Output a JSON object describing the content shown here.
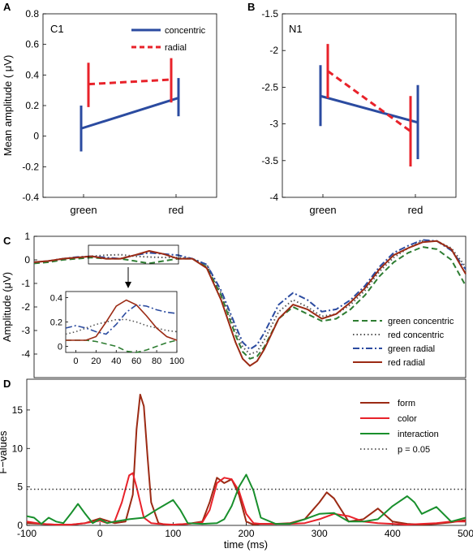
{
  "panels": {
    "A": {
      "panel_label": "A",
      "title": "C1",
      "ylabel": "Mean amplitude ( μV)",
      "yticks": [
        "-0.4",
        "-0.2",
        "0",
        "0.2",
        "0.4",
        "0.6",
        "0.8"
      ],
      "categories": [
        "green",
        "red"
      ]
    },
    "B": {
      "panel_label": "B",
      "title": "N1",
      "yticks": [
        "-4",
        "-3.5",
        "-3",
        "-2.5",
        "-2",
        "-1.5"
      ],
      "categories": [
        "green",
        "red"
      ]
    },
    "C": {
      "panel_label": "C",
      "ylabel": "Amplitude (μV)",
      "yticks": [
        "1",
        "0",
        "-1",
        "-2",
        "-3",
        "-4"
      ],
      "inset_yticks": [
        "0.4",
        "0.2",
        "0"
      ],
      "inset_xticks": [
        "0",
        "20",
        "40",
        "60",
        "80",
        "100"
      ]
    },
    "D": {
      "panel_label": "D",
      "ylabel": "F−values",
      "xlabel": "time (ms)",
      "yticks": [
        "15",
        "10",
        "5",
        "0"
      ],
      "xticks": [
        "-100",
        "0",
        "100",
        "200",
        "300",
        "400",
        "500"
      ]
    }
  },
  "chart_data": [
    {
      "id": "A",
      "type": "line",
      "title": "C1",
      "ylabel": "Mean amplitude ( μV)",
      "categories": [
        "green",
        "red"
      ],
      "ylim": [
        -0.4,
        0.8
      ],
      "legend_position": "top-right",
      "series": [
        {
          "name": "concentric",
          "color": "#2b4ba0",
          "style": "solid",
          "values": [
            0.05,
            0.25
          ],
          "error_low": [
            -0.1,
            0.13
          ],
          "error_high": [
            0.2,
            0.38
          ]
        },
        {
          "name": "radial",
          "color": "#e8222a",
          "style": "dashed",
          "values": [
            0.34,
            0.37
          ],
          "error_low": [
            0.19,
            0.22
          ],
          "error_high": [
            0.48,
            0.51
          ]
        }
      ]
    },
    {
      "id": "B",
      "type": "line",
      "title": "N1",
      "categories": [
        "green",
        "red"
      ],
      "ylim": [
        -4,
        -1.5
      ],
      "series": [
        {
          "name": "concentric",
          "color": "#2b4ba0",
          "style": "solid",
          "values": [
            -2.62,
            -2.98
          ],
          "error_low": [
            -3.03,
            -3.48
          ],
          "error_high": [
            -2.2,
            -2.47
          ]
        },
        {
          "name": "radial",
          "color": "#e8222a",
          "style": "dashed",
          "values": [
            -2.28,
            -3.1
          ],
          "error_low": [
            -2.65,
            -3.58
          ],
          "error_high": [
            -1.91,
            -2.62
          ]
        }
      ]
    },
    {
      "id": "C",
      "type": "line",
      "ylabel": "Amplitude (μV)",
      "xlim": [
        -100,
        500
      ],
      "ylim": [
        -5,
        1
      ],
      "legend_position": "bottom-right",
      "series": [
        {
          "name": "green concentric",
          "color": "#2e7d32",
          "style": "dashed",
          "x": [
            -100,
            -80,
            -60,
            -40,
            -20,
            0,
            20,
            40,
            60,
            80,
            100,
            120,
            140,
            160,
            180,
            190,
            200,
            210,
            220,
            240,
            260,
            280,
            300,
            320,
            340,
            360,
            380,
            400,
            420,
            440,
            460,
            480,
            500
          ],
          "y": [
            -0.15,
            -0.1,
            0,
            0.05,
            0.1,
            0.05,
            0.05,
            -0.05,
            -0.15,
            -0.05,
            0.05,
            0.05,
            -0.3,
            -1.5,
            -3.2,
            -3.9,
            -4.2,
            -4.1,
            -3.7,
            -2.5,
            -2.0,
            -2.3,
            -2.6,
            -2.5,
            -2.1,
            -1.5,
            -0.7,
            -0.1,
            0.3,
            0.55,
            0.45,
            0.0,
            -1.1
          ]
        },
        {
          "name": "red concentric",
          "color": "#555555",
          "style": "dotted",
          "x": [
            -100,
            -80,
            -60,
            -40,
            -20,
            0,
            20,
            40,
            60,
            80,
            100,
            120,
            140,
            160,
            180,
            190,
            200,
            210,
            220,
            240,
            260,
            280,
            300,
            320,
            340,
            360,
            380,
            400,
            420,
            440,
            460,
            480,
            500
          ],
          "y": [
            -0.1,
            -0.05,
            0.05,
            0.1,
            0.15,
            0.2,
            0.22,
            0.15,
            0.12,
            0.1,
            0.1,
            0.05,
            -0.2,
            -1.4,
            -3.0,
            -3.7,
            -4.0,
            -3.9,
            -3.4,
            -2.2,
            -1.7,
            -2.0,
            -2.4,
            -2.3,
            -1.9,
            -1.3,
            -0.5,
            0.1,
            0.5,
            0.8,
            0.8,
            0.5,
            -0.3
          ]
        },
        {
          "name": "green radial",
          "color": "#2b4ba0",
          "style": "dashdot",
          "x": [
            -100,
            -80,
            -60,
            -40,
            -20,
            0,
            20,
            40,
            60,
            80,
            100,
            120,
            140,
            160,
            180,
            190,
            200,
            210,
            220,
            240,
            260,
            280,
            300,
            320,
            340,
            360,
            380,
            400,
            420,
            440,
            460,
            480,
            500
          ],
          "y": [
            -0.1,
            -0.05,
            0.05,
            0.12,
            0.15,
            0.1,
            0.05,
            0.2,
            0.3,
            0.25,
            0.2,
            0.05,
            -0.2,
            -1.3,
            -2.8,
            -3.5,
            -3.8,
            -3.6,
            -3.1,
            -1.9,
            -1.4,
            -1.7,
            -2.2,
            -2.1,
            -1.7,
            -1.1,
            -0.3,
            0.3,
            0.6,
            0.85,
            0.8,
            0.4,
            -0.4
          ]
        },
        {
          "name": "red radial",
          "color": "#9b2a14",
          "style": "solid",
          "x": [
            -100,
            -80,
            -60,
            -40,
            -20,
            0,
            20,
            40,
            60,
            80,
            100,
            120,
            140,
            160,
            180,
            190,
            200,
            210,
            220,
            240,
            260,
            280,
            300,
            320,
            340,
            360,
            380,
            400,
            420,
            440,
            460,
            480,
            500
          ],
          "y": [
            -0.1,
            -0.05,
            0.05,
            0.1,
            0.15,
            0.05,
            0.05,
            0.2,
            0.38,
            0.25,
            0.05,
            0.05,
            -0.35,
            -1.7,
            -3.5,
            -4.2,
            -4.5,
            -4.3,
            -3.8,
            -2.5,
            -1.9,
            -2.1,
            -2.5,
            -2.3,
            -1.8,
            -1.2,
            -0.4,
            0.2,
            0.5,
            0.75,
            0.8,
            0.45,
            -0.6
          ]
        }
      ],
      "inset": {
        "xlim": [
          -10,
          100
        ],
        "ylim": [
          -0.05,
          0.45
        ],
        "series": [
          {
            "name": "green concentric",
            "x": [
              -10,
              0,
              10,
              20,
              30,
              40,
              50,
              60,
              70,
              80,
              90,
              100
            ],
            "y": [
              0.05,
              0.05,
              0.05,
              0.04,
              0.02,
              0.0,
              -0.04,
              -0.05,
              -0.03,
              0.0,
              0.03,
              0.05
            ]
          },
          {
            "name": "red concentric",
            "x": [
              -10,
              0,
              10,
              20,
              30,
              40,
              50,
              60,
              70,
              80,
              90,
              100
            ],
            "y": [
              0.1,
              0.12,
              0.15,
              0.18,
              0.2,
              0.22,
              0.22,
              0.2,
              0.17,
              0.15,
              0.13,
              0.12
            ]
          },
          {
            "name": "green radial",
            "x": [
              -10,
              0,
              10,
              20,
              30,
              40,
              50,
              60,
              70,
              80,
              90,
              100
            ],
            "y": [
              0.15,
              0.17,
              0.15,
              0.12,
              0.1,
              0.18,
              0.28,
              0.34,
              0.33,
              0.3,
              0.28,
              0.27
            ]
          },
          {
            "name": "red radial",
            "x": [
              -10,
              0,
              10,
              20,
              30,
              40,
              50,
              60,
              70,
              80,
              90,
              100
            ],
            "y": [
              0.05,
              0.05,
              0.05,
              0.08,
              0.2,
              0.33,
              0.38,
              0.34,
              0.25,
              0.15,
              0.08,
              0.05
            ]
          }
        ]
      }
    },
    {
      "id": "D",
      "type": "line",
      "ylabel": "F−values",
      "xlabel": "time (ms)",
      "xlim": [
        -100,
        500
      ],
      "ylim": [
        0,
        19
      ],
      "legend_position": "top-right",
      "series": [
        {
          "name": "form",
          "color": "#9b2a14",
          "style": "solid",
          "x": [
            -100,
            -80,
            -60,
            -40,
            -20,
            0,
            20,
            35,
            45,
            50,
            55,
            60,
            65,
            70,
            80,
            90,
            100,
            120,
            140,
            150,
            160,
            170,
            180,
            190,
            200,
            210,
            220,
            240,
            260,
            280,
            300,
            310,
            320,
            340,
            360,
            380,
            400,
            420,
            440,
            460,
            480,
            500
          ],
          "y": [
            0.3,
            0.2,
            0.1,
            0.1,
            0.3,
            0.9,
            0.3,
            0.5,
            4.0,
            12.5,
            17.0,
            15.5,
            9.0,
            3.0,
            0.3,
            0.1,
            0.1,
            0.2,
            0.5,
            3.0,
            6.2,
            5.5,
            6.0,
            4.0,
            0.5,
            0.1,
            0.2,
            0.2,
            0.3,
            0.8,
            3.0,
            4.3,
            3.5,
            0.5,
            0.8,
            2.2,
            0.5,
            0.2,
            0.1,
            0.2,
            0.4,
            0.7
          ]
        },
        {
          "name": "color",
          "color": "#e8222a",
          "style": "solid",
          "x": [
            -100,
            -80,
            -60,
            -40,
            -20,
            0,
            10,
            20,
            30,
            40,
            45,
            50,
            60,
            70,
            80,
            100,
            120,
            140,
            150,
            160,
            170,
            180,
            190,
            200,
            210,
            220,
            240,
            260,
            280,
            300,
            320,
            340,
            360,
            380,
            400,
            420,
            440,
            460,
            480,
            500
          ],
          "y": [
            0.5,
            0.2,
            0.1,
            0.1,
            0.3,
            0.6,
            0.3,
            0.5,
            3.0,
            6.5,
            6.8,
            5.0,
            1.0,
            0.3,
            0.2,
            0.1,
            0.2,
            0.4,
            2.0,
            5.5,
            6.2,
            6.0,
            4.5,
            1.5,
            0.3,
            0.2,
            0.2,
            0.2,
            0.3,
            0.8,
            1.5,
            1.2,
            0.5,
            0.3,
            0.2,
            0.1,
            0.2,
            0.3,
            0.5,
            0.5
          ]
        },
        {
          "name": "interaction",
          "color": "#188f2c",
          "style": "solid",
          "x": [
            -100,
            -90,
            -80,
            -70,
            -60,
            -50,
            -40,
            -30,
            -20,
            -10,
            0,
            10,
            20,
            40,
            60,
            80,
            100,
            110,
            120,
            140,
            160,
            170,
            180,
            190,
            200,
            210,
            220,
            240,
            260,
            280,
            300,
            320,
            340,
            360,
            380,
            400,
            420,
            430,
            440,
            460,
            480,
            500
          ],
          "y": [
            1.2,
            1.0,
            0.2,
            1.0,
            0.5,
            0.3,
            1.5,
            2.8,
            1.5,
            0.3,
            0.8,
            0.3,
            0.5,
            0.8,
            1.0,
            2.2,
            3.3,
            2.0,
            0.3,
            0.2,
            0.3,
            0.8,
            2.5,
            5.0,
            6.6,
            4.5,
            1.0,
            0.2,
            0.2,
            0.8,
            1.5,
            1.6,
            0.5,
            0.5,
            0.8,
            2.5,
            3.8,
            3.0,
            1.5,
            2.4,
            0.5,
            1.0
          ]
        },
        {
          "name": "p = 0.05",
          "color": "#333333",
          "style": "dotted",
          "x": [
            -100,
            500
          ],
          "y": [
            4.7,
            4.7
          ]
        }
      ]
    }
  ]
}
